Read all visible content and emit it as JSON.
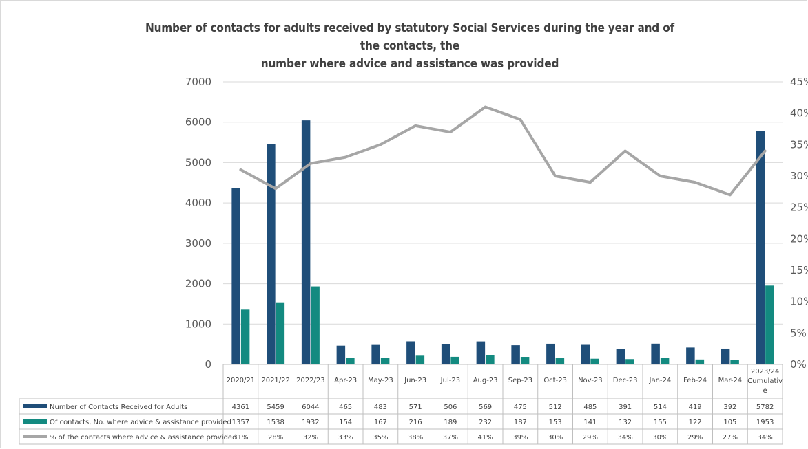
{
  "chart_data": {
    "type": "bar",
    "title_line1": "Number of contacts for adults received by statutory Social Services during the year and of the contacts, the",
    "title_line2": "number where advice and assistance was provided",
    "categories": [
      "2020/21",
      "2021/22",
      "2022/23",
      "Apr-23",
      "May-23",
      "Jun-23",
      "Jul-23",
      "Aug-23",
      "Sep-23",
      "Oct-23",
      "Nov-23",
      "Dec-23",
      "Jan-24",
      "Feb-24",
      "Mar-24",
      "2023/24 Cumulative"
    ],
    "category_label_lines": [
      [
        "2020/21"
      ],
      [
        "2021/22"
      ],
      [
        "2022/23"
      ],
      [
        "Apr-23"
      ],
      [
        "May-23"
      ],
      [
        "Jun-23"
      ],
      [
        "Jul-23"
      ],
      [
        "Aug-23"
      ],
      [
        "Sep-23"
      ],
      [
        "Oct-23"
      ],
      [
        "Nov-23"
      ],
      [
        "Dec-23"
      ],
      [
        "Jan-24"
      ],
      [
        "Feb-24"
      ],
      [
        "Mar-24"
      ],
      [
        "2023/24",
        "Cumulativ",
        "e"
      ]
    ],
    "series": [
      {
        "name": "Number of Contacts Received for Adults",
        "type": "bar",
        "axis": "left",
        "color": "#1f4e79",
        "values": [
          4361,
          5459,
          6044,
          465,
          483,
          571,
          506,
          569,
          475,
          512,
          485,
          391,
          514,
          419,
          392,
          5782
        ]
      },
      {
        "name": "Of contacts, No. where advice & assistance provided",
        "type": "bar",
        "axis": "left",
        "color": "#138a80",
        "values": [
          1357,
          1538,
          1932,
          154,
          167,
          216,
          189,
          232,
          187,
          153,
          141,
          132,
          155,
          122,
          105,
          1953
        ]
      },
      {
        "name": "% of the contacts where advice & assistance provided",
        "type": "line",
        "axis": "right",
        "color": "#a6a6a6",
        "values": [
          31,
          28,
          32,
          33,
          35,
          38,
          37,
          41,
          39,
          30,
          29,
          34,
          30,
          29,
          27,
          34
        ],
        "labels": [
          "31%",
          "28%",
          "32%",
          "33%",
          "35%",
          "38%",
          "37%",
          "41%",
          "39%",
          "30%",
          "29%",
          "34%",
          "30%",
          "29%",
          "27%",
          "34%"
        ]
      }
    ],
    "y_left": {
      "min": 0,
      "max": 7000,
      "ticks": [
        "0",
        "1000",
        "2000",
        "3000",
        "4000",
        "5000",
        "6000",
        "7000"
      ]
    },
    "y_right": {
      "min": 0,
      "max": 45,
      "ticks": [
        "0%",
        "5%",
        "10%",
        "15%",
        "20%",
        "25%",
        "30%",
        "35%",
        "40%",
        "45%"
      ]
    },
    "grid": true,
    "legend": "data-table"
  }
}
